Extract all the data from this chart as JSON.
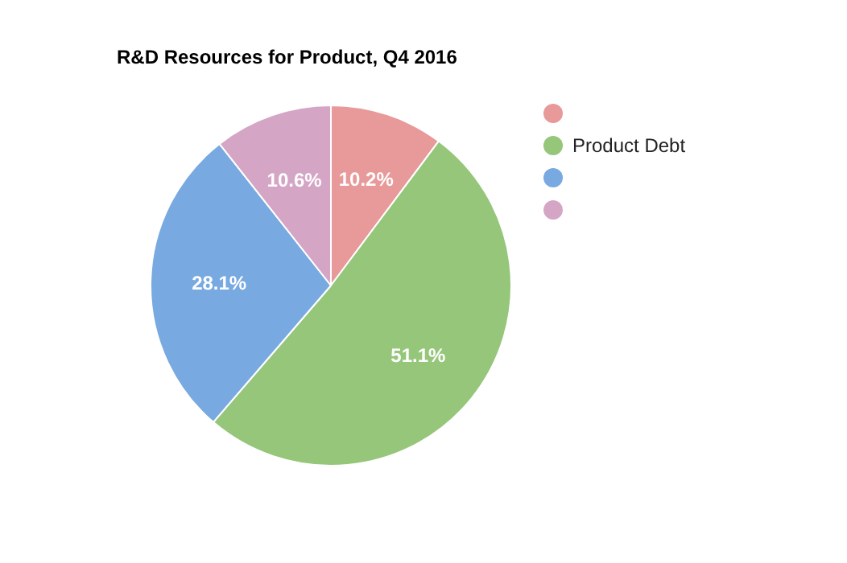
{
  "chart_data": {
    "type": "pie",
    "title": "R&D Resources for Product, Q4 2016",
    "categories": [
      null,
      "Product Debt",
      null,
      null
    ],
    "values": [
      10.2,
      51.1,
      28.1,
      10.6
    ],
    "colors": [
      "#e8999a",
      "#95c67a",
      "#78a9e1",
      "#d4a5c5"
    ],
    "value_labels": [
      "10.2%",
      "51.1%",
      "28.1%",
      "10.6%"
    ],
    "legend": "right"
  }
}
